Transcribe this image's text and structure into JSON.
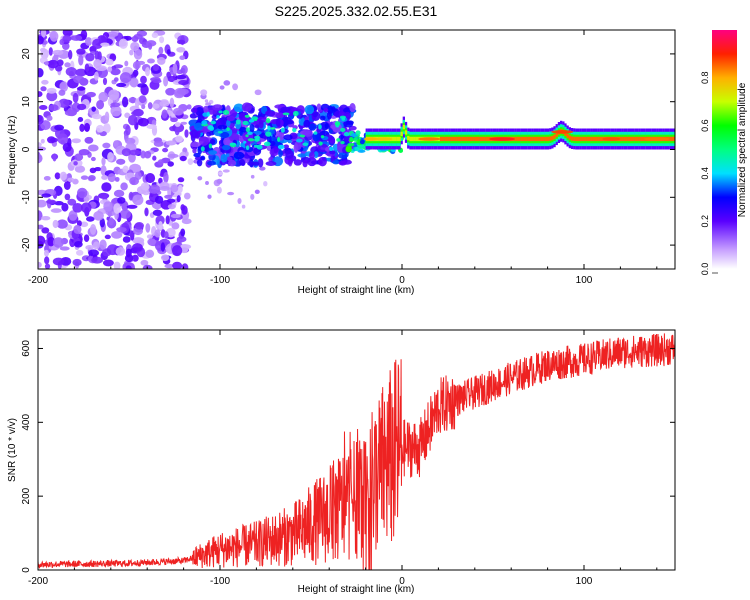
{
  "title": "S225.2025.332.02.55.E31",
  "chart_data": [
    {
      "type": "heatmap",
      "name": "spectrogram",
      "xlabel": "Height of straight line (km)",
      "ylabel": "Frequency (Hz)",
      "xlim": [
        -200,
        150
      ],
      "ylim": [
        -25,
        25
      ],
      "xticks": [
        -200,
        -100,
        0,
        100
      ],
      "yticks": [
        -20,
        -10,
        0,
        10,
        20
      ],
      "colorbar": {
        "label": "Normalized spectral amplitude",
        "range": [
          0,
          1
        ],
        "ticks": [
          0.0,
          0.2,
          0.4,
          0.6,
          0.8
        ]
      },
      "features": [
        {
          "x_range": [
            -200,
            -120
          ],
          "y_range": [
            -25,
            25
          ],
          "amplitude": 0.1,
          "description": "diffuse noise"
        },
        {
          "x_range": [
            -115,
            -30
          ],
          "y_range": [
            -3,
            10
          ],
          "amplitude": 0.25,
          "description": "noisy signal band"
        },
        {
          "x_range": [
            -30,
            150
          ],
          "y_range": [
            0,
            6
          ],
          "amplitude": 0.75,
          "description": "carrier line near 2 Hz"
        }
      ]
    },
    {
      "type": "line",
      "name": "snr",
      "xlabel": "Height of straight line (km)",
      "ylabel": "SNR (10 * v/v)",
      "xlim": [
        -200,
        150
      ],
      "ylim": [
        0,
        650
      ],
      "xticks": [
        -200,
        -100,
        0,
        100
      ],
      "yticks": [
        0,
        200,
        400,
        600
      ],
      "color": "#ee2222",
      "trend": {
        "x": [
          -200,
          -150,
          -120,
          -100,
          -80,
          -60,
          -40,
          -20,
          -10,
          0,
          10,
          20,
          30,
          40,
          60,
          80,
          100,
          120,
          140,
          150
        ],
        "y": [
          15,
          18,
          25,
          55,
          70,
          95,
          150,
          210,
          280,
          330,
          330,
          440,
          460,
          480,
          520,
          555,
          570,
          590,
          595,
          600
        ]
      }
    }
  ]
}
